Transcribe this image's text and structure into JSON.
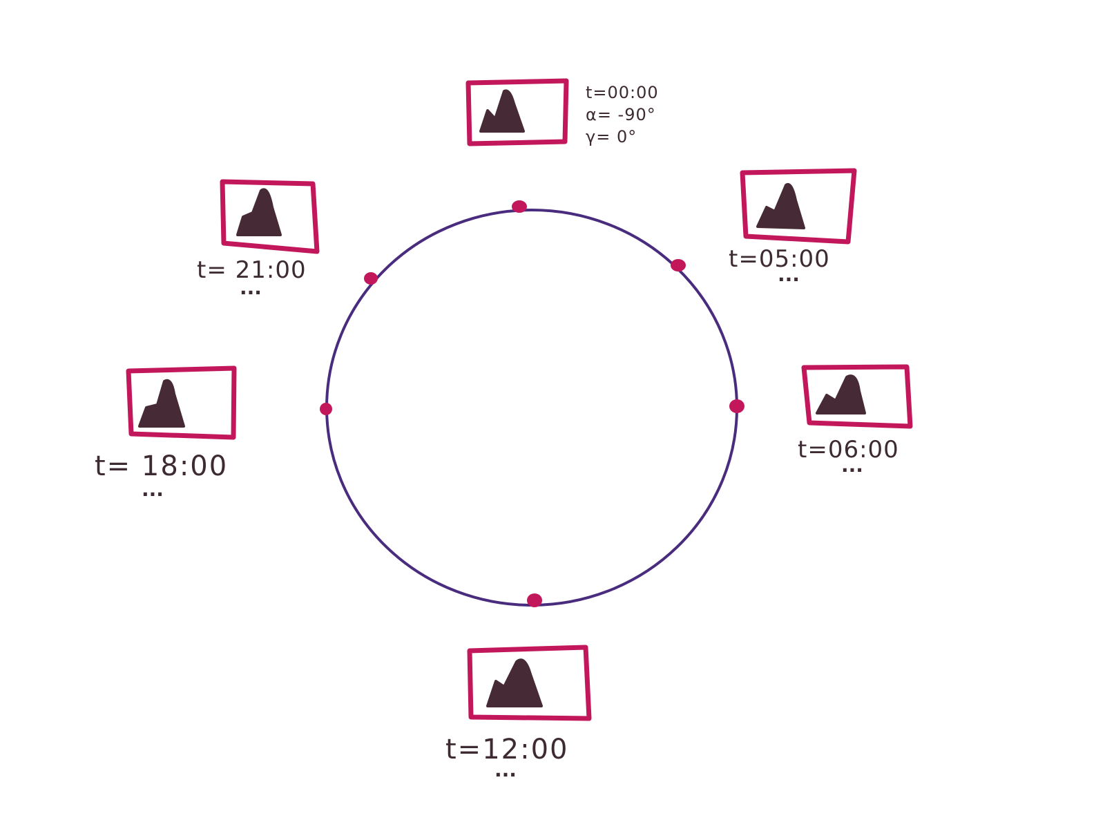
{
  "colors": {
    "frame": "#c2185b",
    "mountain": "#462a36",
    "orbit": "#4a2c7f",
    "marker": "#c2185b",
    "text": "#3d2a33"
  },
  "icons": {
    "thumbnail": "image-placeholder-icon"
  },
  "snapshots": [
    {
      "id": "snap-0000",
      "lines": [
        "t=00:00",
        "α= -90°",
        "γ= 0°"
      ],
      "ellipsis": ""
    },
    {
      "id": "snap-0500",
      "lines": [
        "t=05:00"
      ],
      "ellipsis": "..."
    },
    {
      "id": "snap-0600",
      "lines": [
        "t=06:00"
      ],
      "ellipsis": "..."
    },
    {
      "id": "snap-1200",
      "lines": [
        "t=12:00"
      ],
      "ellipsis": "..."
    },
    {
      "id": "snap-1800",
      "lines": [
        "t= 18:00"
      ],
      "ellipsis": "..."
    },
    {
      "id": "snap-2100",
      "lines": [
        "t= 21:00"
      ],
      "ellipsis": "..."
    }
  ]
}
